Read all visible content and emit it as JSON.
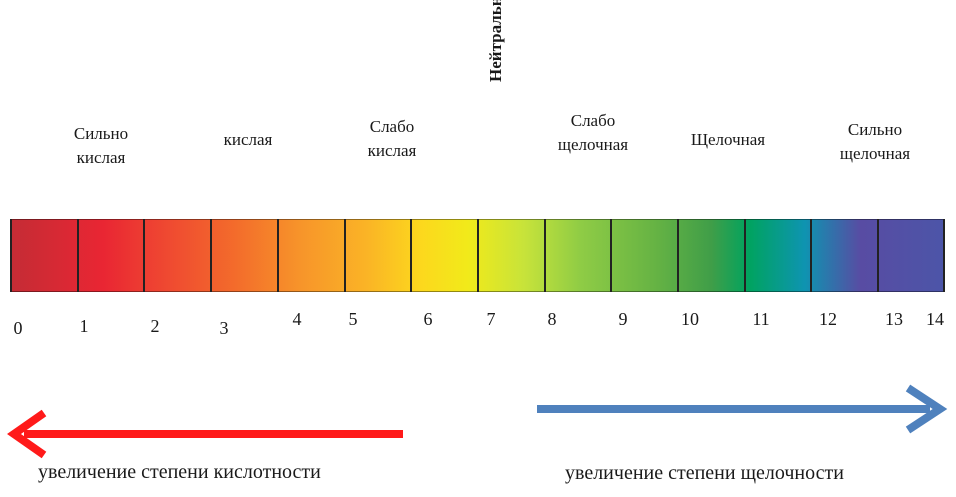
{
  "categories": [
    {
      "id": "strong-acid",
      "lines": [
        "Сильно",
        "кислая"
      ]
    },
    {
      "id": "acid",
      "lines": [
        "кислая"
      ]
    },
    {
      "id": "weak-acid",
      "lines": [
        "Слабо",
        "кислая"
      ]
    },
    {
      "id": "weak-alkaline",
      "lines": [
        "Слабо",
        "щелочная"
      ]
    },
    {
      "id": "alkaline",
      "lines": [
        "Щелочная"
      ]
    },
    {
      "id": "strong-alkaline",
      "lines": [
        "Сильно",
        "щелочная"
      ]
    }
  ],
  "neutral_label": "Нейтральная",
  "scale": {
    "ticks": [
      "0",
      "1",
      "2",
      "3",
      "4",
      "5",
      "6",
      "7",
      "8",
      "9",
      "10",
      "11",
      "12",
      "13",
      "14"
    ],
    "colors": {
      "start": "#c42c35",
      "yellow": "#f1ea1a",
      "green": "#409e48",
      "end": "#4c55a8"
    }
  },
  "arrows": {
    "acid": {
      "caption": "увеличение степени кислотности",
      "color": "#ff1a1a",
      "direction": "left"
    },
    "alkaline": {
      "caption": "увеличение степени щелочности",
      "color": "#4f81bd",
      "direction": "right"
    }
  }
}
